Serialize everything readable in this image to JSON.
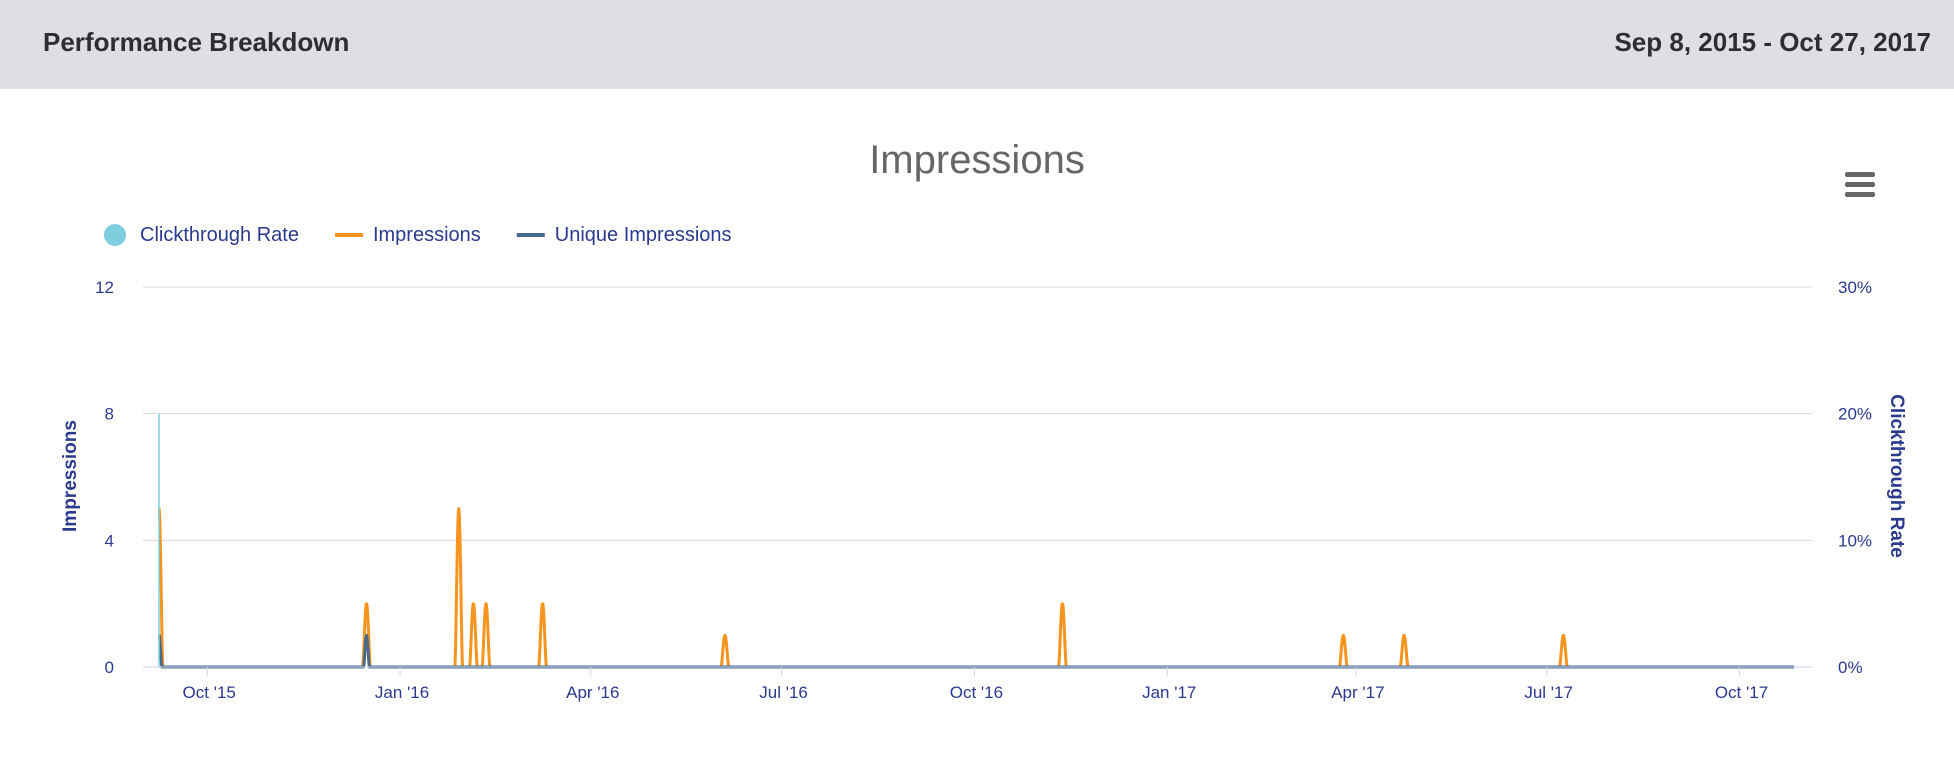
{
  "header": {
    "title": "Performance Breakdown",
    "date_range": "Sep 8, 2015 - Oct 27, 2017"
  },
  "menu": {
    "icon": "hamburger-menu-icon"
  },
  "colors": {
    "clickthrough_rate": "#7dcfe0",
    "impressions": "#f7941d",
    "unique_impressions": "#4a6a8c",
    "axis_text": "#2b3a8f",
    "grid": "#d8d8d8",
    "title": "#666666"
  },
  "chart_data": {
    "type": "line",
    "title": "Impressions",
    "ylabel": "Impressions",
    "y2label": "Clickthrough Rate",
    "ylim": [
      0,
      12
    ],
    "y2lim": [
      0,
      30
    ],
    "yticks": [
      "0",
      "4",
      "8",
      "12"
    ],
    "y2ticks": [
      "0%",
      "10%",
      "20%",
      "30%"
    ],
    "xlim": [
      "2015-09-08",
      "2017-10-27"
    ],
    "xticks": [
      {
        "label": "Oct '15",
        "date": "2015-10-01"
      },
      {
        "label": "Jan '16",
        "date": "2016-01-01"
      },
      {
        "label": "Apr '16",
        "date": "2016-04-01"
      },
      {
        "label": "Jul '16",
        "date": "2016-07-01"
      },
      {
        "label": "Oct '16",
        "date": "2016-10-01"
      },
      {
        "label": "Jan '17",
        "date": "2017-01-01"
      },
      {
        "label": "Apr '17",
        "date": "2017-04-01"
      },
      {
        "label": "Jul '17",
        "date": "2017-07-01"
      },
      {
        "label": "Oct '17",
        "date": "2017-10-01"
      }
    ],
    "grid": true,
    "legend_position": "top-left",
    "series": [
      {
        "name": "Clickthrough Rate",
        "axis": "right",
        "marker": "circle",
        "points": [
          {
            "x": "2015-09-08",
            "y": 20
          }
        ]
      },
      {
        "name": "Impressions",
        "axis": "left",
        "points": [
          {
            "x": "2015-09-08",
            "y": 5
          },
          {
            "x": "2015-12-16",
            "y": 2
          },
          {
            "x": "2016-01-29",
            "y": 5
          },
          {
            "x": "2016-02-05",
            "y": 2
          },
          {
            "x": "2016-02-11",
            "y": 2
          },
          {
            "x": "2016-03-09",
            "y": 2
          },
          {
            "x": "2016-06-04",
            "y": 1
          },
          {
            "x": "2016-11-12",
            "y": 2
          },
          {
            "x": "2017-03-26",
            "y": 1
          },
          {
            "x": "2017-04-24",
            "y": 1
          },
          {
            "x": "2017-07-09",
            "y": 1
          }
        ]
      },
      {
        "name": "Unique Impressions",
        "axis": "left",
        "points": [
          {
            "x": "2015-09-08",
            "y": 1
          },
          {
            "x": "2015-12-16",
            "y": 1
          }
        ]
      }
    ]
  }
}
